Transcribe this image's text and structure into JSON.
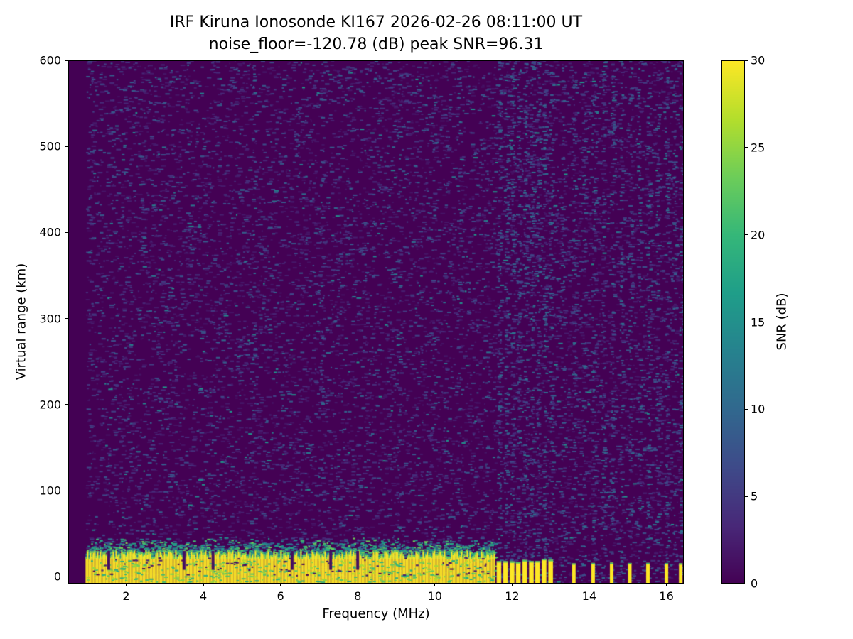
{
  "figure": {
    "background": "#ffffff"
  },
  "chart_data": {
    "type": "heatmap",
    "title": "IRF Kiruna Ionosonde KI167 2026-02-26 08:11:00  UT",
    "subtitle": "noise_floor=-120.78 (dB) peak SNR=96.31",
    "station": "IRF Kiruna Ionosonde KI167",
    "timestamp_ut": "2026-02-26 08:11:00",
    "noise_floor_db": -120.78,
    "peak_snr_db": 96.31,
    "xlabel": "Frequency (MHz)",
    "ylabel": "Virtual range (km)",
    "xlim": [
      0.5,
      16.45
    ],
    "ylim": [
      -8,
      600
    ],
    "x_ticks": [
      2,
      4,
      6,
      8,
      10,
      12,
      14,
      16
    ],
    "y_ticks": [
      0,
      100,
      200,
      300,
      400,
      500,
      600
    ],
    "grid": false,
    "colorbar": {
      "label": "SNR (dB)",
      "range": [
        0,
        30
      ],
      "ticks": [
        0,
        5,
        10,
        15,
        20,
        25,
        30
      ],
      "colormap": "viridis"
    },
    "background_snr_db": 0,
    "noise": {
      "seed": 167,
      "speckle_count": 12500,
      "snr_min": 1.5,
      "snr_max": 9,
      "freq_start": 0.95,
      "faint_stripes_mhz": [
        5.3,
        7.05,
        9.05,
        9.95,
        10.6
      ]
    },
    "ground_echo": {
      "freq_range": [
        0.95,
        11.55
      ],
      "top_km": 26,
      "snr_db": 30,
      "notch_freqs_mhz": [
        1.55,
        3.5,
        4.25,
        6.3,
        7.3,
        8.0
      ]
    },
    "interference": {
      "dense_bars_mhz": [
        11.66,
        11.83,
        12.0,
        12.16,
        12.33,
        12.5,
        12.66,
        12.83,
        13.0
      ],
      "sparse_bars_mhz": [
        13.6,
        14.1,
        14.58,
        15.05,
        15.52,
        16.0,
        16.37
      ],
      "noise_stripes_mhz": [
        13.3,
        13.85,
        14.35,
        14.82,
        15.28,
        15.75,
        16.2
      ],
      "bar_top_km": 17,
      "snr_db": 30
    }
  }
}
